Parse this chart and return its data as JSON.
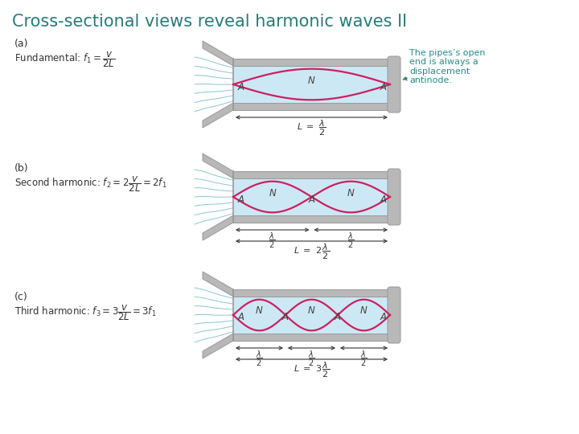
{
  "title": "Cross-sectional views reveal harmonic waves II",
  "title_color": "#2a7a7a",
  "title_fontsize": 15,
  "background_color": "#ffffff",
  "panels": [
    {
      "label": "(a)",
      "formula_line1": "(a)",
      "formula_line2": "Fundamental: $f_1 = \\dfrac{v}{2L}$",
      "n_harmonics": 1,
      "dim_rows": 1
    },
    {
      "label": "(b)",
      "formula_line1": "(b)",
      "formula_line2": "Second harmonic: $f_2 = 2\\dfrac{v}{2L} = 2f_1$",
      "n_harmonics": 2,
      "dim_rows": 2
    },
    {
      "label": "(c)",
      "formula_line1": "(c)",
      "formula_line2": "Third harmonic: $f_3 = 3\\dfrac{v}{2L} = 3f_1$",
      "n_harmonics": 3,
      "dim_rows": 2
    }
  ],
  "pipe_gray": "#b8b8b8",
  "pipe_dark": "#999999",
  "interior_fill": "#cce8f4",
  "wave_color": "#cc2060",
  "label_color": "#444444",
  "arrow_color": "#333333",
  "annotation_text": "The pipes’s open\nend is always a\ndisplacement\nantinode.",
  "annotation_color": "#2a8a8a",
  "flow_line_color": "#77bbcc"
}
